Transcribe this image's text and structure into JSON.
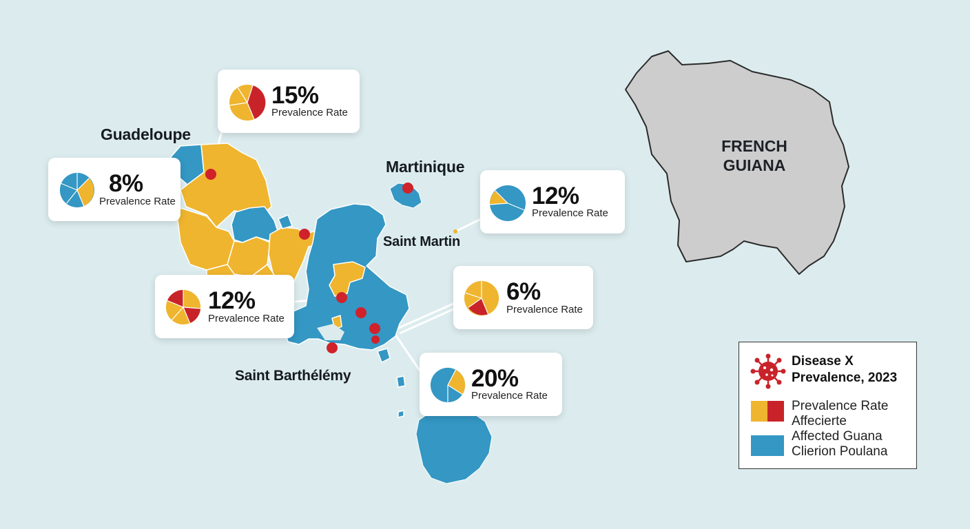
{
  "colors": {
    "background": "#dcecee",
    "blue": "#3497c4",
    "yellow": "#efb52f",
    "red": "#c9232a",
    "guiana_fill": "#cdcdcd"
  },
  "regions": {
    "guadeloupe": "Guadeloupe",
    "martinique": "Martinique",
    "saint_martin": "Saint Martin",
    "saint_barthelemy": "Saint Barthélémy",
    "french_guiana": [
      "FRENCH",
      "GUIANA"
    ]
  },
  "callouts": [
    {
      "id": "c15",
      "value": "15%",
      "label": "Prevalence Rate"
    },
    {
      "id": "c8",
      "value": "8%",
      "label": "Prevalence Rate"
    },
    {
      "id": "c12a",
      "value": "12%",
      "label": "Prevalence Rate"
    },
    {
      "id": "c12b",
      "value": "12%",
      "label": "Prevalence Rate"
    },
    {
      "id": "c6",
      "value": "6%",
      "label": "Prevalence Rate"
    },
    {
      "id": "c20",
      "value": "20%",
      "label": "Prevalence Rate"
    }
  ],
  "legend": {
    "icon": "virus-icon",
    "title": [
      "Disease X",
      "Prevalence, 2023"
    ],
    "items": [
      {
        "swatch": [
          "yellow",
          "red"
        ],
        "lines": [
          "Prevalence Rate",
          "Affecierte"
        ]
      },
      {
        "swatch": [
          "blue",
          "blue"
        ],
        "lines": [
          "Affected Guana",
          "Clierion Poulana"
        ]
      }
    ]
  }
}
